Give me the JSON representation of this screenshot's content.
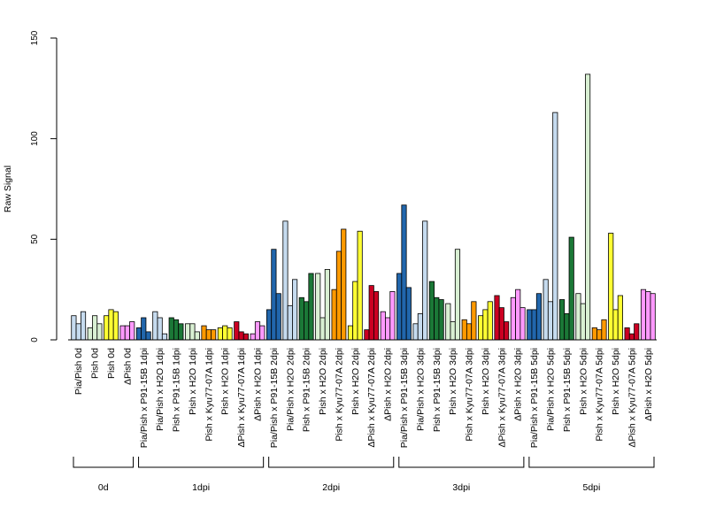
{
  "chart_data": {
    "type": "bar",
    "ylabel": "Raw Signal",
    "xlabel": "",
    "ylim": [
      0,
      150
    ],
    "yticks": [
      0,
      50,
      100,
      150
    ],
    "grid": false,
    "legend": "none",
    "series_colors": [
      "#c6dbef",
      "#2166ac",
      "#1b7837",
      "#d9f0d3",
      "#ff9900",
      "#ffff33",
      "#cc0022",
      "#ff99ff"
    ],
    "categories": [
      {
        "label": "Pia/Pish 0d",
        "color": "#c6dbef",
        "values": [
          12,
          8,
          14
        ]
      },
      {
        "label": "Pish 0d",
        "color": "#d9f0d3",
        "values": [
          6,
          12,
          8
        ]
      },
      {
        "label": "Pish 0d",
        "color": "#ffff33",
        "values": [
          12,
          15,
          14
        ]
      },
      {
        "label": "ΔPish 0d",
        "color": "#ff99ff",
        "values": [
          7,
          7,
          9
        ]
      },
      {
        "label": "Pia/Pish x P91-15B 1dpi",
        "color": "#2166ac",
        "values": [
          6,
          11,
          4
        ]
      },
      {
        "label": "Pia/Pish x H2O 1dpi",
        "color": "#c6dbef",
        "values": [
          14,
          11,
          3
        ]
      },
      {
        "label": "Pish x P91-15B 1dpi",
        "color": "#1b7837",
        "values": [
          11,
          10,
          8
        ]
      },
      {
        "label": "Pish x H2O 1dpi",
        "color": "#d9f0d3",
        "values": [
          8,
          8,
          4
        ]
      },
      {
        "label": "Pish x Kyu77-07A 1dpi",
        "color": "#ff9900",
        "values": [
          7,
          5,
          5
        ]
      },
      {
        "label": "Pish x H2O 1dpi",
        "color": "#ffff33",
        "values": [
          6,
          7,
          6
        ]
      },
      {
        "label": "ΔPish x Kyu77-07A 1dpi",
        "color": "#cc0022",
        "values": [
          9,
          4,
          3
        ]
      },
      {
        "label": "ΔPish x H2O 1dpi",
        "color": "#ff99ff",
        "values": [
          3,
          9,
          7
        ]
      },
      {
        "label": "Pia/Pish x P91-15B 2dpi",
        "color": "#2166ac",
        "values": [
          15,
          45,
          23
        ]
      },
      {
        "label": "Pia/Pish x H2O 2dpi",
        "color": "#c6dbef",
        "values": [
          59,
          17,
          30
        ]
      },
      {
        "label": "Pish x P91-15B 2dpi",
        "color": "#1b7837",
        "values": [
          21,
          19,
          33
        ]
      },
      {
        "label": "Pish x H2O 2dpi",
        "color": "#d9f0d3",
        "values": [
          33,
          11,
          35
        ]
      },
      {
        "label": "Pish x Kyu77-07A 2dpi",
        "color": "#ff9900",
        "values": [
          25,
          44,
          55
        ]
      },
      {
        "label": "Pish x H2O 2dpi",
        "color": "#ffff33",
        "values": [
          7,
          29,
          54
        ]
      },
      {
        "label": "ΔPish x Kyu77-07A 2dpi",
        "color": "#cc0022",
        "values": [
          5,
          27,
          24
        ]
      },
      {
        "label": "ΔPish x H2O 2dpi",
        "color": "#ff99ff",
        "values": [
          14,
          11,
          24
        ]
      },
      {
        "label": "Pia/Pish x P91-15B 3dpi",
        "color": "#2166ac",
        "values": [
          33,
          67,
          26
        ]
      },
      {
        "label": "Pia/Pish x H2O 3dpi",
        "color": "#c6dbef",
        "values": [
          8,
          13,
          59
        ]
      },
      {
        "label": "Pish x P91-15B 3dpi",
        "color": "#1b7837",
        "values": [
          29,
          21,
          20
        ]
      },
      {
        "label": "Pish x H2O 3dpi",
        "color": "#d9f0d3",
        "values": [
          18,
          9,
          45
        ]
      },
      {
        "label": "Pish x Kyu77-07A 3dpi",
        "color": "#ff9900",
        "values": [
          10,
          8,
          19
        ]
      },
      {
        "label": "Pish x H2O 3dpi",
        "color": "#ffff33",
        "values": [
          12,
          15,
          19
        ]
      },
      {
        "label": "ΔPish x Kyu77-07A 3dpi",
        "color": "#cc0022",
        "values": [
          22,
          16,
          9
        ]
      },
      {
        "label": "ΔPish x H2O 3dpi",
        "color": "#ff99ff",
        "values": [
          21,
          25,
          16
        ]
      },
      {
        "label": "Pia/Pish x P91-15B 5dpi",
        "color": "#2166ac",
        "values": [
          15,
          15,
          23
        ]
      },
      {
        "label": "Pia/Pish x H2O 5dpi",
        "color": "#c6dbef",
        "values": [
          30,
          19,
          113
        ]
      },
      {
        "label": "Pish x P91-15B 5dpi",
        "color": "#1b7837",
        "values": [
          20,
          13,
          51
        ]
      },
      {
        "label": "Pish x H2O 5dpi",
        "color": "#d9f0d3",
        "values": [
          23,
          18,
          132
        ]
      },
      {
        "label": "Pish x Kyu77-07A 5dpi",
        "color": "#ff9900",
        "values": [
          6,
          5,
          10
        ]
      },
      {
        "label": "Pish x H2O 5dpi",
        "color": "#ffff33",
        "values": [
          53,
          15,
          22
        ]
      },
      {
        "label": "ΔPish x Kyu77-07A 5dpi",
        "color": "#cc0022",
        "values": [
          6,
          3,
          8
        ]
      },
      {
        "label": "ΔPish x H2O 5dpi",
        "color": "#ff99ff",
        "values": [
          25,
          24,
          23
        ]
      }
    ],
    "groups": [
      {
        "label": "0d",
        "start": 0,
        "end": 3
      },
      {
        "label": "1dpi",
        "start": 4,
        "end": 11
      },
      {
        "label": "2dpi",
        "start": 12,
        "end": 19
      },
      {
        "label": "3dpi",
        "start": 20,
        "end": 27
      },
      {
        "label": "5dpi",
        "start": 28,
        "end": 35
      }
    ]
  }
}
